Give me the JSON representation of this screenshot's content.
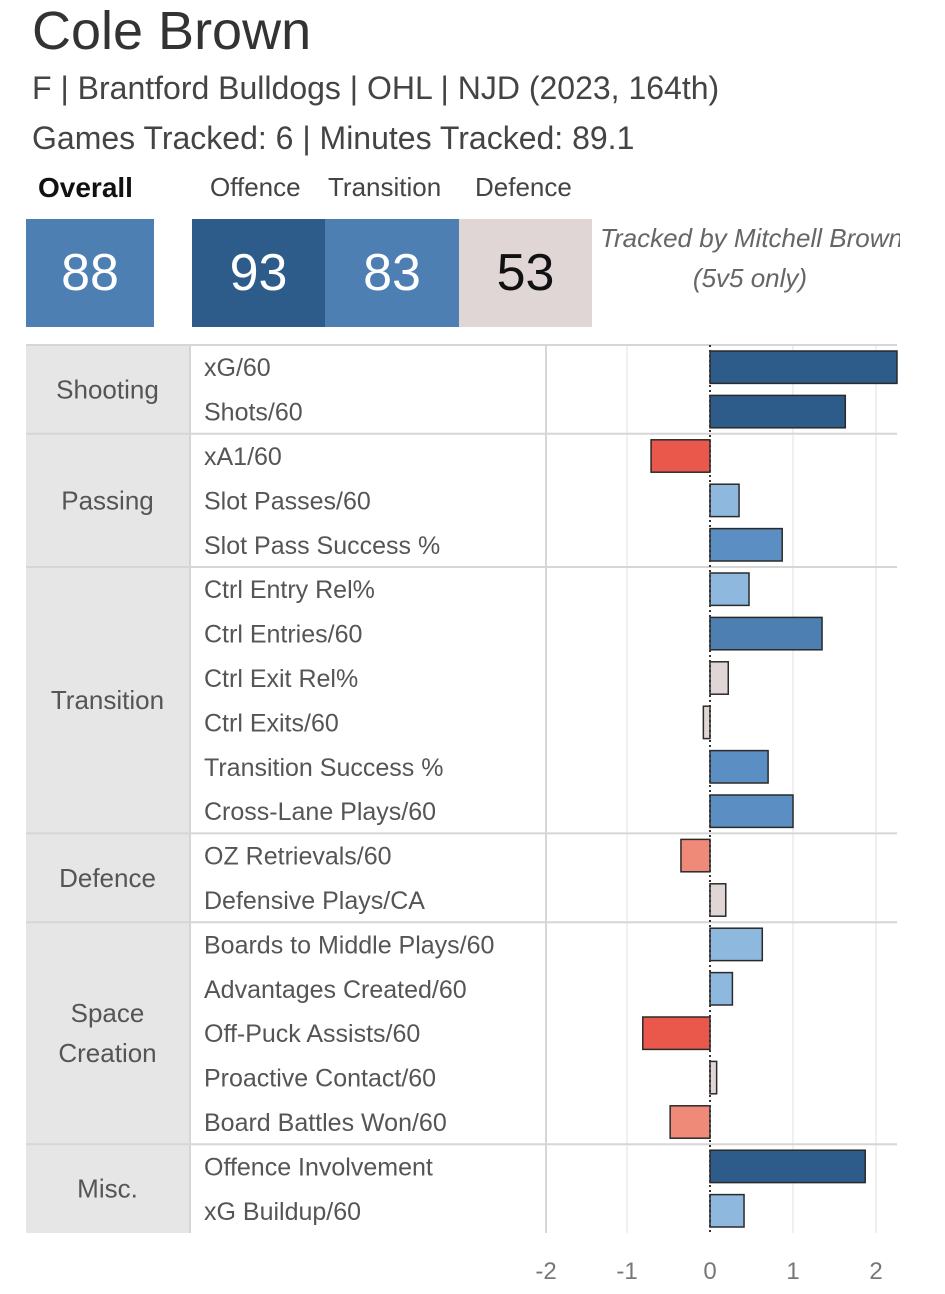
{
  "header": {
    "player_name": "Cole Brown",
    "subtitle": "F | Brantford Bulldogs | OHL | NJD (2023, 164th)",
    "tracked": "Games Tracked: 6 | Minutes Tracked: 89.1",
    "tracker_line1": "Tracked by Mitchell Brown",
    "tracker_line2": "(5v5 only)"
  },
  "ratings": {
    "overall_label": "Overall",
    "overall": "88",
    "offence_label": "Offence",
    "offence": "93",
    "transition_label": "Transition",
    "transition": "83",
    "defence_label": "Defence",
    "defence": "53"
  },
  "colors": {
    "dark_blue": "#2d5b8a",
    "mid_blue": "#4e7fb3",
    "steel_blue": "#5b8ec2",
    "light_blue": "#8fb8df",
    "neutral": "#e0d6d6",
    "light_red": "#f08a78",
    "red": "#e9584a",
    "category_bg": "#e6e6e6"
  },
  "chart_data": {
    "type": "bar",
    "orientation": "horizontal",
    "xlim": [
      -2,
      2.2
    ],
    "xticks": [
      "-2",
      "-1",
      "0",
      "1",
      "2"
    ],
    "grid": true,
    "groups": [
      {
        "name": "Shooting",
        "metrics": [
          {
            "label": "xG/60",
            "value": 2.3,
            "color": "dark_blue"
          },
          {
            "label": "Shots/60",
            "value": 1.63,
            "color": "dark_blue"
          }
        ]
      },
      {
        "name": "Passing",
        "metrics": [
          {
            "label": "xA1/60",
            "value": -0.71,
            "color": "red"
          },
          {
            "label": "Slot Passes/60",
            "value": 0.35,
            "color": "light_blue"
          },
          {
            "label": "Slot Pass Success %",
            "value": 0.87,
            "color": "steel_blue"
          }
        ]
      },
      {
        "name": "Transition",
        "metrics": [
          {
            "label": "Ctrl Entry Rel%",
            "value": 0.47,
            "color": "light_blue"
          },
          {
            "label": "Ctrl Entries/60",
            "value": 1.35,
            "color": "mid_blue"
          },
          {
            "label": "Ctrl Exit Rel%",
            "value": 0.22,
            "color": "neutral"
          },
          {
            "label": "Ctrl Exits/60",
            "value": -0.08,
            "color": "neutral"
          },
          {
            "label": "Transition Success %",
            "value": 0.7,
            "color": "steel_blue"
          },
          {
            "label": "Cross-Lane Plays/60",
            "value": 1.0,
            "color": "steel_blue"
          }
        ]
      },
      {
        "name": "Defence",
        "metrics": [
          {
            "label": "OZ Retrievals/60",
            "value": -0.35,
            "color": "light_red"
          },
          {
            "label": "Defensive Plays/CA",
            "value": 0.19,
            "color": "neutral"
          }
        ]
      },
      {
        "name": "Space Creation",
        "metrics": [
          {
            "label": "Boards to Middle Plays/60",
            "value": 0.63,
            "color": "light_blue"
          },
          {
            "label": "Advantages Created/60",
            "value": 0.27,
            "color": "light_blue"
          },
          {
            "label": "Off-Puck Assists/60",
            "value": -0.81,
            "color": "red"
          },
          {
            "label": "Proactive Contact/60",
            "value": 0.08,
            "color": "neutral"
          },
          {
            "label": "Board Battles Won/60",
            "value": -0.48,
            "color": "light_red"
          }
        ]
      },
      {
        "name": "Misc.",
        "metrics": [
          {
            "label": "Offence Involvement",
            "value": 1.87,
            "color": "dark_blue"
          },
          {
            "label": "xG Buildup/60",
            "value": 0.41,
            "color": "light_blue"
          }
        ]
      }
    ]
  }
}
